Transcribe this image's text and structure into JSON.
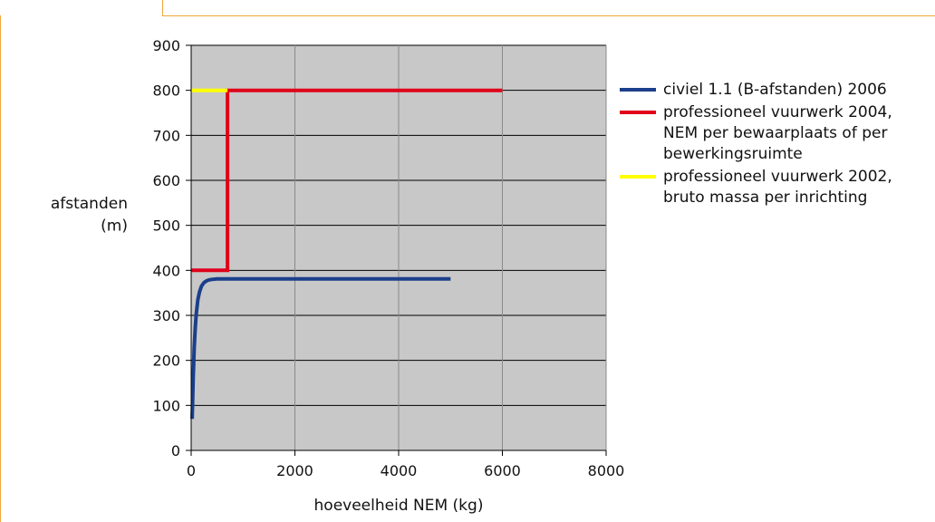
{
  "chart_data": {
    "type": "line",
    "title": "",
    "xlabel": "hoeveelheid NEM (kg)",
    "ylabel_lines": [
      "afstanden",
      "(m)"
    ],
    "xlim": [
      0,
      8000
    ],
    "ylim": [
      0,
      900
    ],
    "xticks": [
      "0",
      "2000",
      "4000",
      "6000",
      "8000"
    ],
    "yticks": [
      "0",
      "100",
      "200",
      "300",
      "400",
      "500",
      "600",
      "700",
      "800",
      "900"
    ],
    "grid": true,
    "plot_background": "#c8c8c8",
    "legend_position": "right",
    "series": [
      {
        "name": "civiel 1.1 (B-afstanden) 2006",
        "color": "#1b3f8b",
        "x": [
          20,
          40,
          60,
          80,
          100,
          130,
          160,
          200,
          250,
          300,
          350,
          400,
          500,
          5000
        ],
        "y": [
          70,
          165,
          230,
          275,
          305,
          335,
          352,
          365,
          373,
          377,
          379,
          380,
          381,
          381
        ]
      },
      {
        "name": "professioneel vuurwerk 2004, NEM per bewaarplaats of per bewerkingsruimte",
        "color": "#e0001a",
        "x": [
          0,
          700,
          700,
          6000
        ],
        "y": [
          400,
          400,
          800,
          800
        ]
      },
      {
        "name": "professioneel vuurwerk 2002, bruto massa per inrichting",
        "color": "#ffff00",
        "x": [
          0,
          700
        ],
        "y": [
          800,
          800
        ]
      }
    ]
  }
}
